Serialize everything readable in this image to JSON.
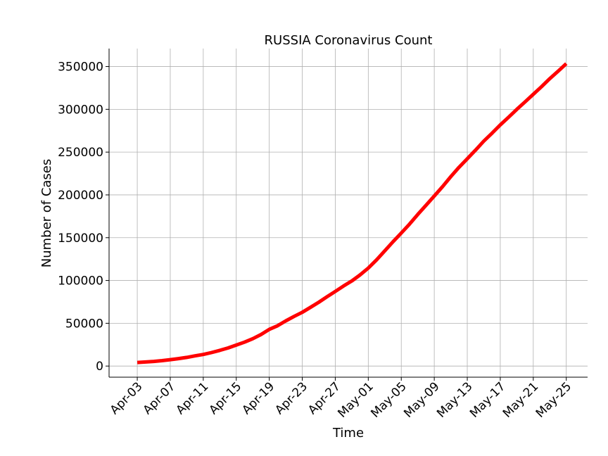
{
  "chart_data": {
    "type": "line",
    "title": "RUSSIA Coronavirus Count",
    "xlabel": "Time",
    "ylabel": "Number of Cases",
    "x_tick_labels": [
      "Apr-03",
      "Apr-07",
      "Apr-11",
      "Apr-15",
      "Apr-19",
      "Apr-23",
      "Apr-27",
      "May-01",
      "May-05",
      "May-09",
      "May-13",
      "May-17",
      "May-21",
      "May-25"
    ],
    "y_tick_labels": [
      "0",
      "50000",
      "100000",
      "150000",
      "200000",
      "250000",
      "300000",
      "350000"
    ],
    "y_ticks": [
      0,
      50000,
      100000,
      150000,
      200000,
      250000,
      300000,
      350000
    ],
    "ylim": [
      -13000,
      371000
    ],
    "xlim": [
      "2020-03-30 14:00",
      "2020-05-27 14:00"
    ],
    "grid": true,
    "line_color": "#ff0000",
    "series": [
      {
        "x": [
          "2020-04-03",
          "2020-04-04",
          "2020-04-05",
          "2020-04-06",
          "2020-04-07",
          "2020-04-08",
          "2020-04-09",
          "2020-04-10",
          "2020-04-11",
          "2020-04-12",
          "2020-04-13",
          "2020-04-14",
          "2020-04-15",
          "2020-04-16",
          "2020-04-17",
          "2020-04-18",
          "2020-04-19",
          "2020-04-20",
          "2020-04-21",
          "2020-04-22",
          "2020-04-23",
          "2020-04-24",
          "2020-04-25",
          "2020-04-26",
          "2020-04-27",
          "2020-04-28",
          "2020-04-29",
          "2020-04-30",
          "2020-05-01",
          "2020-05-02",
          "2020-05-03",
          "2020-05-04",
          "2020-05-05",
          "2020-05-06",
          "2020-05-07",
          "2020-05-08",
          "2020-05-09",
          "2020-05-10",
          "2020-05-11",
          "2020-05-12",
          "2020-05-13",
          "2020-05-14",
          "2020-05-15",
          "2020-05-16",
          "2020-05-17",
          "2020-05-18",
          "2020-05-19",
          "2020-05-20",
          "2020-05-21",
          "2020-05-22",
          "2020-05-23",
          "2020-05-24",
          "2020-05-25"
        ],
        "values": [
          4149,
          4731,
          5389,
          6343,
          7497,
          8672,
          10131,
          11917,
          13584,
          15770,
          18328,
          21102,
          24490,
          27938,
          32008,
          36793,
          42853,
          47121,
          52763,
          57999,
          62773,
          68622,
          74588,
          80949,
          87147,
          93558,
          99399,
          106498,
          114431,
          124054,
          134687,
          145268,
          155370,
          165929,
          177160,
          187859,
          198676,
          209688,
          221344,
          232243,
          242271,
          252245,
          262843,
          272043,
          281752,
          290678,
          299941,
          308705,
          317554,
          326448,
          335882,
          344481,
          353427
        ]
      }
    ]
  }
}
